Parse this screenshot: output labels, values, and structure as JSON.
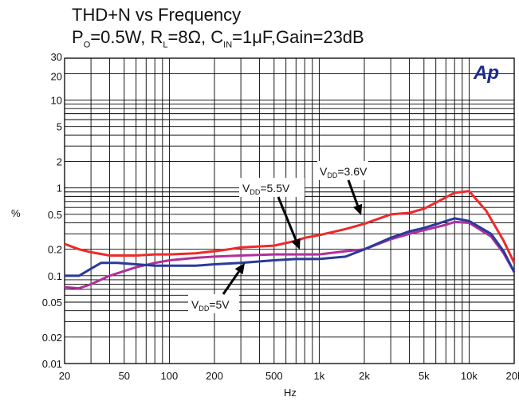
{
  "chart_data": {
    "type": "line",
    "title": "THD+N vs Frequency",
    "subtitle": {
      "po_main": "P",
      "po_sub": "O",
      "po_val": "=0.5W, ",
      "rl_main": "R",
      "rl_sub": "L",
      "rl_val": "=8Ω, ",
      "cin_main": "C",
      "cin_sub": "IN",
      "cin_val": "=1μF,Gain=23dB"
    },
    "xlabel": "Hz",
    "ylabel": "%",
    "x_scale": "log",
    "y_scale": "log",
    "xlim": [
      20,
      20000
    ],
    "ylim": [
      0.01,
      30
    ],
    "grid": true,
    "x_ticks": [
      {
        "v": 20,
        "label": "20"
      },
      {
        "v": 50,
        "label": "50"
      },
      {
        "v": 100,
        "label": "100"
      },
      {
        "v": 200,
        "label": "200"
      },
      {
        "v": 500,
        "label": "500"
      },
      {
        "v": 1000,
        "label": "1k"
      },
      {
        "v": 2000,
        "label": "2k"
      },
      {
        "v": 5000,
        "label": "5k"
      },
      {
        "v": 10000,
        "label": "10k"
      },
      {
        "v": 20000,
        "label": "20k"
      }
    ],
    "y_ticks": [
      {
        "v": 0.01,
        "label": "0.01"
      },
      {
        "v": 0.02,
        "label": "0.02"
      },
      {
        "v": 0.05,
        "label": "0.05"
      },
      {
        "v": 0.1,
        "label": "0.1"
      },
      {
        "v": 0.2,
        "label": "0.2"
      },
      {
        "v": 0.5,
        "label": "0.5"
      },
      {
        "v": 1,
        "label": "1"
      },
      {
        "v": 2,
        "label": "2"
      },
      {
        "v": 5,
        "label": "5"
      },
      {
        "v": 10,
        "label": "10"
      },
      {
        "v": 20,
        "label": "20"
      },
      {
        "v": 30,
        "label": "30"
      }
    ],
    "logo": "Ap",
    "series": [
      {
        "name": "VDD=3.6V",
        "color": "#ee2a2a",
        "points": [
          [
            20,
            0.23
          ],
          [
            25,
            0.2
          ],
          [
            30,
            0.185
          ],
          [
            40,
            0.17
          ],
          [
            60,
            0.17
          ],
          [
            80,
            0.175
          ],
          [
            100,
            0.175
          ],
          [
            150,
            0.18
          ],
          [
            200,
            0.19
          ],
          [
            250,
            0.2
          ],
          [
            300,
            0.21
          ],
          [
            500,
            0.22
          ],
          [
            700,
            0.25
          ],
          [
            800,
            0.27
          ],
          [
            1000,
            0.29
          ],
          [
            1500,
            0.34
          ],
          [
            2000,
            0.39
          ],
          [
            3000,
            0.5
          ],
          [
            4000,
            0.52
          ],
          [
            5000,
            0.58
          ],
          [
            6000,
            0.68
          ],
          [
            8000,
            0.88
          ],
          [
            10000,
            0.92
          ],
          [
            13000,
            0.55
          ],
          [
            17000,
            0.25
          ],
          [
            20000,
            0.14
          ]
        ]
      },
      {
        "name": "VDD=5.5V",
        "color": "#b0309a",
        "points": [
          [
            20,
            0.074
          ],
          [
            25,
            0.072
          ],
          [
            30,
            0.08
          ],
          [
            40,
            0.1
          ],
          [
            60,
            0.125
          ],
          [
            80,
            0.14
          ],
          [
            100,
            0.15
          ],
          [
            150,
            0.16
          ],
          [
            200,
            0.165
          ],
          [
            300,
            0.17
          ],
          [
            500,
            0.175
          ],
          [
            700,
            0.175
          ],
          [
            1000,
            0.175
          ],
          [
            1500,
            0.19
          ],
          [
            2000,
            0.2
          ],
          [
            3000,
            0.26
          ],
          [
            4000,
            0.3
          ],
          [
            5000,
            0.33
          ],
          [
            7000,
            0.38
          ],
          [
            8000,
            0.41
          ],
          [
            10000,
            0.4
          ],
          [
            14000,
            0.28
          ],
          [
            17000,
            0.18
          ],
          [
            20000,
            0.11
          ]
        ]
      },
      {
        "name": "VDD=5V",
        "color": "#2a3a9a",
        "points": [
          [
            20,
            0.1
          ],
          [
            25,
            0.1
          ],
          [
            30,
            0.12
          ],
          [
            35,
            0.14
          ],
          [
            45,
            0.14
          ],
          [
            60,
            0.135
          ],
          [
            80,
            0.13
          ],
          [
            100,
            0.13
          ],
          [
            150,
            0.13
          ],
          [
            200,
            0.135
          ],
          [
            300,
            0.14
          ],
          [
            500,
            0.15
          ],
          [
            700,
            0.155
          ],
          [
            1000,
            0.155
          ],
          [
            1500,
            0.165
          ],
          [
            2000,
            0.2
          ],
          [
            3000,
            0.27
          ],
          [
            4000,
            0.32
          ],
          [
            5000,
            0.35
          ],
          [
            8000,
            0.45
          ],
          [
            10000,
            0.42
          ],
          [
            14000,
            0.3
          ],
          [
            17000,
            0.19
          ],
          [
            20000,
            0.11
          ]
        ]
      }
    ],
    "annotations": [
      {
        "main": "V",
        "sub": "DD",
        "rest": "=3.6V"
      },
      {
        "main": "V",
        "sub": "DD",
        "rest": "=5.5V"
      },
      {
        "main": "V",
        "sub": "DD",
        "rest": "=5V"
      }
    ]
  }
}
